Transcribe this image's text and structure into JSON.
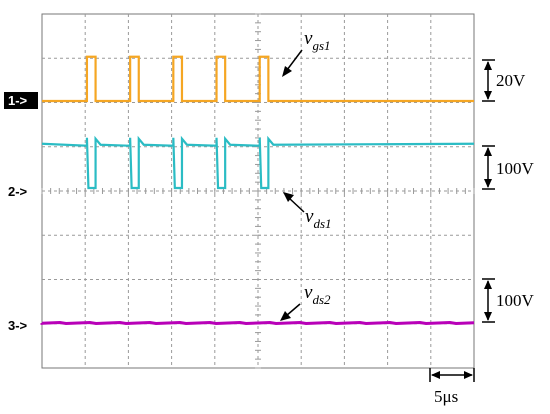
{
  "chart_data": {
    "type": "line",
    "title": "",
    "xlabel": "",
    "ylabel": "",
    "grid": true,
    "x_scale": {
      "label": "5μs",
      "value_us": 5
    },
    "time_range_us": [
      0,
      50
    ],
    "pulse_period_us": 5,
    "pulse_starts_us": [
      5.2,
      10.2,
      15.2,
      20.2,
      25.2
    ],
    "pulse_width_us": 1.0,
    "series": [
      {
        "name": "v_gs1",
        "label_base": "v",
        "label_sub": "gs1",
        "channel_marker": "1->",
        "color": "#f5a623",
        "scale_label": "20V",
        "low_level": 0,
        "high_level": 20
      },
      {
        "name": "v_ds1",
        "label_base": "v",
        "label_sub": "ds1",
        "channel_marker": "2->",
        "color": "#2bbcc4",
        "scale_label": "100V",
        "low_level": 0,
        "high_level": 100
      },
      {
        "name": "v_ds2",
        "label_base": "v",
        "label_sub": "ds2",
        "channel_marker": "3->",
        "color": "#b800b8",
        "scale_label": "100V",
        "low_level": 0,
        "high_level": 0
      }
    ]
  }
}
